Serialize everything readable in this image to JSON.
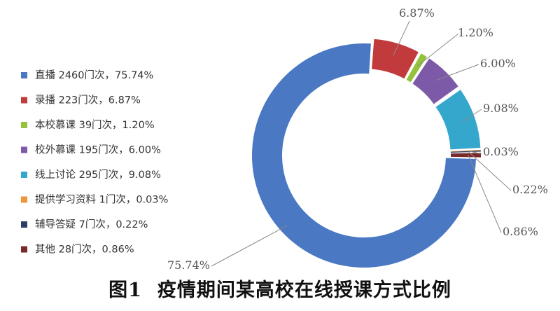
{
  "caption": {
    "figure_number": "图1",
    "title": "疫情期间某高校在线授课方式比例"
  },
  "chart_data": {
    "type": "pie",
    "donut": true,
    "legend_position": "left",
    "start_angle_deg": 0,
    "slices": [
      {
        "name": "直播",
        "count": 2460,
        "percent": 75.74,
        "label": "75.74%",
        "legend_text": "直播 2460门次，75.74%",
        "color": "#4a78c2"
      },
      {
        "name": "录播",
        "count": 223,
        "percent": 6.87,
        "label": "6.87%",
        "legend_text": "录播 223门次，6.87%",
        "color": "#c23b3c"
      },
      {
        "name": "本校慕课",
        "count": 39,
        "percent": 1.2,
        "label": "1.20%",
        "legend_text": "本校慕课 39门次，1.20%",
        "color": "#94c23c"
      },
      {
        "name": "校外慕课",
        "count": 195,
        "percent": 6.0,
        "label": "6.00%",
        "legend_text": "校外慕课 195门次，6.00%",
        "color": "#7d5aa8"
      },
      {
        "name": "线上讨论",
        "count": 295,
        "percent": 9.08,
        "label": "9.08%",
        "legend_text": "线上讨论 295门次，9.08%",
        "color": "#36a7cc"
      },
      {
        "name": "提供学习资料",
        "count": 1,
        "percent": 0.03,
        "label": "0.03%",
        "legend_text": "提供学习资料 1门次，0.03%",
        "color": "#f29438"
      },
      {
        "name": "辅导答疑",
        "count": 7,
        "percent": 0.22,
        "label": "0.22%",
        "legend_text": "辅导答疑 7门次，0.22%",
        "color": "#2b3f66"
      },
      {
        "name": "其他",
        "count": 28,
        "percent": 0.86,
        "label": "0.86%",
        "legend_text": "其他 28门次，0.86%",
        "color": "#7a2a2a"
      }
    ]
  }
}
